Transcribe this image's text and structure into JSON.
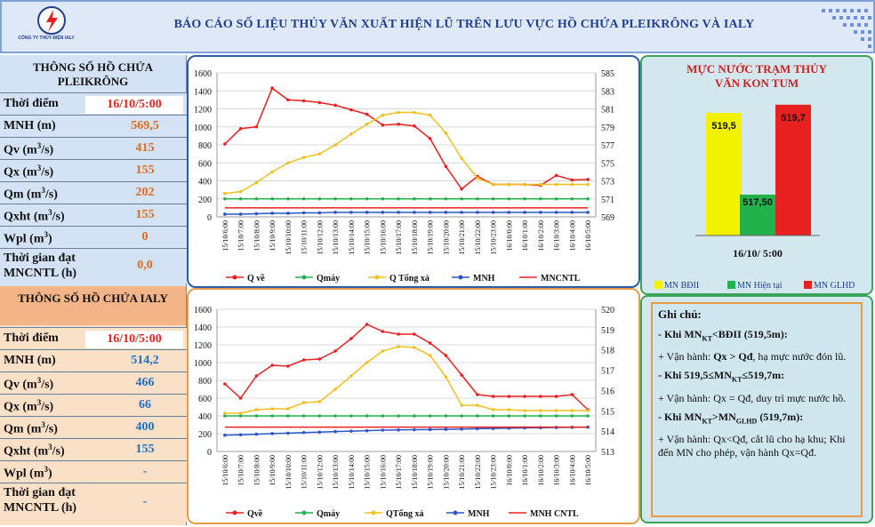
{
  "header": {
    "title": "BÁO CÁO SỐ LIỆU THỦY VĂN XUẤT HIỆN LŨ TRÊN LƯU VỰC HỒ CHỨA PLEIKRÔNG VÀ IALY",
    "logo_text": "EVN",
    "company": "CÔNG TY THỦY ĐIỆN IALY"
  },
  "pleikrong": {
    "title": "THÔNG SỐ HỒ CHỨA PLEIKRÔNG",
    "rows": [
      {
        "label": "Thời điểm",
        "value": "16/10/5:00"
      },
      {
        "label": "MNH (m)",
        "value": "569,5"
      },
      {
        "label": "Qv (m",
        "unit_sup": "3",
        "unit_end": "/s)",
        "value": "415"
      },
      {
        "label": "Qx (m",
        "unit_sup": "3",
        "unit_end": "/s)",
        "value": "155"
      },
      {
        "label": "Qm (m",
        "unit_sup": "3",
        "unit_end": "/s)",
        "value": "202"
      },
      {
        "label": "Qxht (m",
        "unit_sup": "3",
        "unit_end": "/s)",
        "value": "155"
      },
      {
        "label": "Wpl (m",
        "unit_sup": "3",
        "unit_end": ")",
        "value": "0"
      },
      {
        "label": "Thời gian đạt MNCNTL (h)",
        "value": "0,0"
      }
    ]
  },
  "ialy": {
    "title": "THÔNG SỐ HỒ CHỨA IALY",
    "rows": [
      {
        "label": "Thời điểm",
        "value": "16/10/5:00"
      },
      {
        "label": "MNH (m)",
        "value": "514,2"
      },
      {
        "label": "Qv (m",
        "unit_sup": "3",
        "unit_end": "/s)",
        "value": "466"
      },
      {
        "label": "Qx (m",
        "unit_sup": "3",
        "unit_end": "/s)",
        "value": "66"
      },
      {
        "label": "Qm (m",
        "unit_sup": "3",
        "unit_end": "/s)",
        "value": "400"
      },
      {
        "label": "Qxht (m",
        "unit_sup": "3",
        "unit_end": "/s)",
        "value": "155"
      },
      {
        "label": "Wpl (m",
        "unit_sup": "3",
        "unit_end": ")",
        "value": "-"
      },
      {
        "label": "Thời gian đạt MNCNTL (h)",
        "value": "-"
      }
    ]
  },
  "kontum": {
    "title": "MỰC NƯỚC TRẠM THỦY VĂN KON TUM",
    "category": "16/10/ 5:00",
    "bars": [
      {
        "name": "MN BĐII",
        "value": 519.5,
        "label": "519,5",
        "color": "#f2f200"
      },
      {
        "name": "MN Hiện tại",
        "value": 517.5,
        "label": "517,50",
        "color": "#22b24c"
      },
      {
        "name": "MN GLHD",
        "value": 519.7,
        "label": "519,7",
        "color": "#e8201f"
      }
    ]
  },
  "notes": {
    "title": "Ghi chú:",
    "lines": [
      {
        "b": "- Khi  MN",
        "sub": "KT",
        "b2": "<BĐII (519,5m):"
      },
      {
        "t": "+ Vận hành: ",
        "b": "Qx > Qđ",
        "t2": ", hạ mực nước đón lũ."
      },
      {
        "b": "- Khi 519,5≤MN",
        "sub": "KT",
        "b2": "≤519,7m:"
      },
      {
        "t": "+ Vận hành: Qx = Qđ, duy trì mực nước hồ."
      },
      {
        "b": "- Khi MN",
        "sub": "KT",
        "b2": ">MN",
        "sub2": "GLHD",
        "b3": " (519,7m):"
      },
      {
        "t": "+ Vận hành: Qx<Qđ, cắt lũ cho hạ khu; Khi đến MN cho phép, vận hành Qx=Qđ."
      }
    ]
  },
  "chart_data": [
    {
      "type": "line",
      "x": [
        "15/10/6:00",
        "15/10/7:00",
        "15/10/8:00",
        "15/10/9:00",
        "15/10/10:00",
        "15/10/11:00",
        "15/10/12:00",
        "15/10/13:00",
        "15/10/14:00",
        "15/10/15:00",
        "15/10/16:00",
        "15/10/17:00",
        "15/10/18:00",
        "15/10/19:00",
        "15/10/20:00",
        "15/10/21:00",
        "15/10/22:00",
        "15/10/23:00",
        "16/10/0:00",
        "16/10/1:00",
        "16/10/2:00",
        "16/10/3:00",
        "16/10/4:00",
        "16/10/5:00"
      ],
      "ylim": [
        0,
        1600
      ],
      "y2lim": [
        569,
        585
      ],
      "yticks": [
        0,
        200,
        400,
        600,
        800,
        1000,
        1200,
        1400,
        1600
      ],
      "y2ticks": [
        569,
        571,
        573,
        575,
        577,
        579,
        581,
        583,
        585
      ],
      "series": [
        {
          "name": "Q về",
          "axis": "left",
          "color": "#e8201f",
          "marker": "circle",
          "values": [
            810,
            980,
            1000,
            1430,
            1300,
            1290,
            1270,
            1240,
            1190,
            1140,
            1020,
            1030,
            1010,
            870,
            560,
            310,
            450,
            360,
            360,
            360,
            350,
            460,
            410,
            415
          ]
        },
        {
          "name": "Qmáy",
          "axis": "left",
          "color": "#22b24c",
          "marker": "circle",
          "values": [
            200,
            200,
            200,
            200,
            200,
            200,
            200,
            200,
            200,
            200,
            200,
            200,
            200,
            200,
            200,
            200,
            200,
            200,
            200,
            200,
            200,
            200,
            200,
            200
          ]
        },
        {
          "name": "Q Tổng xả",
          "axis": "left",
          "color": "#f0c020",
          "marker": "circle",
          "values": [
            260,
            280,
            380,
            500,
            600,
            660,
            700,
            800,
            920,
            1030,
            1130,
            1160,
            1160,
            1130,
            930,
            650,
            430,
            360,
            360,
            360,
            360,
            360,
            360,
            360
          ]
        },
        {
          "name": "MNH",
          "axis": "right",
          "color": "#2a56c6",
          "marker": "circle",
          "values": [
            569.3,
            569.3,
            569.35,
            569.4,
            569.4,
            569.45,
            569.45,
            569.5,
            569.5,
            569.5,
            569.5,
            569.5,
            569.5,
            569.5,
            569.5,
            569.5,
            569.5,
            569.5,
            569.5,
            569.5,
            569.5,
            569.5,
            569.5,
            569.5
          ]
        },
        {
          "name": "MNCNTL",
          "axis": "right",
          "color": "#e8201f",
          "marker": "none",
          "values": [
            570,
            570,
            570,
            570,
            570,
            570,
            570,
            570,
            570,
            570,
            570,
            570,
            570,
            570,
            570,
            570,
            570,
            570,
            570,
            570,
            570,
            570,
            570,
            570
          ]
        }
      ]
    },
    {
      "type": "line",
      "x": [
        "15/10/6:00",
        "15/10/7:00",
        "15/10/8:00",
        "15/10/9:00",
        "15/10/10:00",
        "15/10/11:00",
        "15/10/12:00",
        "15/10/13:00",
        "15/10/14:00",
        "15/10/15:00",
        "15/10/16:00",
        "15/10/17:00",
        "15/10/18:00",
        "15/10/19:00",
        "15/10/20:00",
        "15/10/21:00",
        "15/10/22:00",
        "15/10/23:00",
        "16/10/0:00",
        "16/10/1:00",
        "16/10/2:00",
        "16/10/3:00",
        "16/10/4:00",
        "16/10/5:00"
      ],
      "ylim": [
        0,
        1600
      ],
      "y2lim": [
        513,
        520
      ],
      "yticks": [
        0,
        200,
        400,
        600,
        800,
        1000,
        1200,
        1400,
        1600
      ],
      "y2ticks": [
        513,
        514,
        515,
        516,
        517,
        518,
        519,
        520
      ],
      "series": [
        {
          "name": "Qvề",
          "axis": "left",
          "color": "#e8201f",
          "marker": "circle",
          "values": [
            760,
            600,
            850,
            970,
            960,
            1030,
            1040,
            1130,
            1270,
            1430,
            1350,
            1320,
            1320,
            1220,
            1080,
            860,
            640,
            620,
            620,
            620,
            620,
            620,
            640,
            470
          ]
        },
        {
          "name": "Qmáy",
          "axis": "left",
          "color": "#22b24c",
          "marker": "circle",
          "values": [
            400,
            400,
            400,
            400,
            400,
            400,
            400,
            400,
            400,
            400,
            400,
            400,
            400,
            400,
            400,
            400,
            400,
            400,
            400,
            400,
            400,
            400,
            400,
            400
          ]
        },
        {
          "name": "QTổng xả",
          "axis": "left",
          "color": "#f0c020",
          "marker": "circle",
          "values": [
            430,
            430,
            470,
            480,
            480,
            550,
            560,
            700,
            850,
            1000,
            1130,
            1180,
            1170,
            1080,
            840,
            520,
            520,
            470,
            470,
            460,
            460,
            460,
            460,
            460
          ]
        },
        {
          "name": "MNH",
          "axis": "right",
          "color": "#2a56c6",
          "marker": "circle",
          "values": [
            513.8,
            513.82,
            513.85,
            513.88,
            513.9,
            513.93,
            513.95,
            513.98,
            514.0,
            514.02,
            514.05,
            514.06,
            514.07,
            514.08,
            514.09,
            514.1,
            514.12,
            514.13,
            514.15,
            514.16,
            514.17,
            514.18,
            514.19,
            514.2
          ]
        },
        {
          "name": "MNH CNTL",
          "axis": "right",
          "color": "#e8201f",
          "marker": "none",
          "values": [
            514.2,
            514.2,
            514.2,
            514.2,
            514.2,
            514.2,
            514.2,
            514.2,
            514.2,
            514.2,
            514.2,
            514.2,
            514.2,
            514.2,
            514.2,
            514.2,
            514.2,
            514.2,
            514.2,
            514.2,
            514.2,
            514.2,
            514.2,
            514.2
          ]
        }
      ]
    },
    {
      "type": "bar",
      "categories": [
        "16/10/ 5:00"
      ],
      "series": [
        {
          "name": "MN BĐII",
          "values": [
            519.5
          ]
        },
        {
          "name": "MN Hiện tại",
          "values": [
            517.5
          ]
        },
        {
          "name": "MN GLHD",
          "values": [
            519.7
          ]
        }
      ]
    }
  ]
}
